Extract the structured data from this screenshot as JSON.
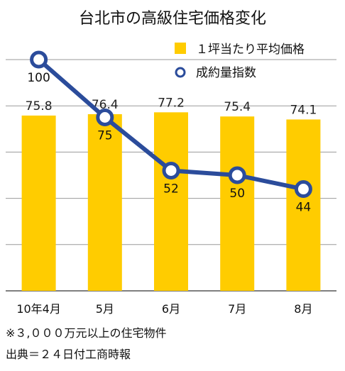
{
  "chart_data": {
    "type": "bar+line",
    "title": "台北市の高級住宅価格変化",
    "categories": [
      "10年4月",
      "5月",
      "6月",
      "7月",
      "8月"
    ],
    "series": [
      {
        "name": "１坪当たり平均価格",
        "type": "bar",
        "values": [
          75.8,
          76.4,
          77.2,
          75.4,
          74.1
        ],
        "value_labels": [
          "75.8",
          "76.4",
          "77.2",
          "75.4",
          "74.1"
        ]
      },
      {
        "name": "成約量指数",
        "type": "line",
        "values": [
          100,
          75,
          52,
          50,
          44
        ],
        "value_labels": [
          "100",
          "75",
          "52",
          "50",
          "44"
        ]
      }
    ],
    "ylim": [
      0,
      100
    ],
    "grid": true,
    "legend_position": "top-right",
    "colors": {
      "bar": "#FFCC00",
      "line": "#2B4C9B",
      "marker_fill": "#ffffff",
      "grid": "#9a9a9a"
    }
  },
  "notes": {
    "line1": "※３,０００万元以上の住宅物件",
    "line2": "出典＝２４日付工商時報"
  }
}
